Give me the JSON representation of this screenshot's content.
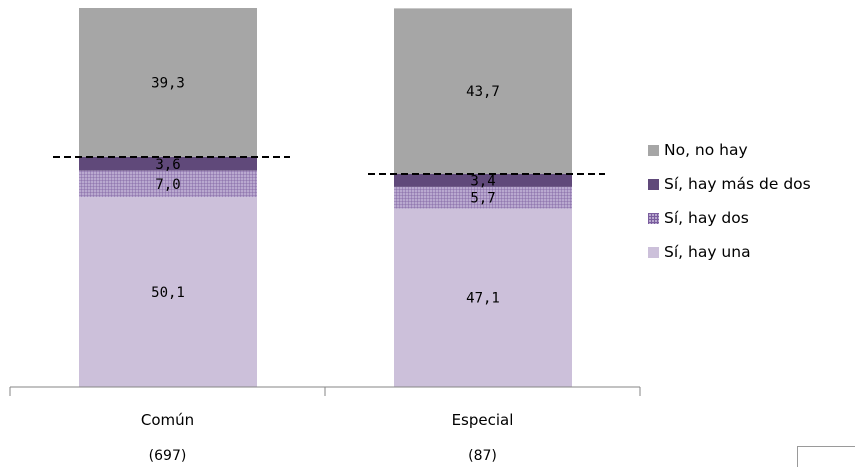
{
  "chart_data": {
    "type": "bar",
    "stacked": true,
    "categories": [
      "Común",
      "Especial"
    ],
    "sample_sizes": [
      "(697)",
      "(87)"
    ],
    "series": [
      {
        "name": "Sí, hay una",
        "values": [
          50.1,
          47.1
        ],
        "labels": [
          "50,1",
          "47,1"
        ],
        "color": "#ccc0da",
        "pattern": "solid"
      },
      {
        "name": "Sí, hay dos",
        "values": [
          7.0,
          5.7
        ],
        "labels": [
          "7,0",
          "5,7"
        ],
        "color": "#8064a2",
        "pattern": "grid"
      },
      {
        "name": "Sí, hay más de dos",
        "values": [
          3.6,
          3.4
        ],
        "labels": [
          "3,6",
          "3,4"
        ],
        "color": "#60497a",
        "pattern": "solid"
      },
      {
        "name": "No, no hay",
        "values": [
          39.3,
          43.7
        ],
        "labels": [
          "39,3",
          "43,7"
        ],
        "color": "#a6a6a6",
        "pattern": "solid"
      }
    ],
    "legend_order": [
      "No, no hay",
      "Sí, hay más de dos",
      "Sí, hay dos",
      "Sí, hay una"
    ],
    "legend_position": "right",
    "reference_lines": "dashed line at the top of the \"Sí\" segments for each bar",
    "ylim": [
      0,
      100
    ],
    "y_axis_visible": false,
    "grid": false
  }
}
